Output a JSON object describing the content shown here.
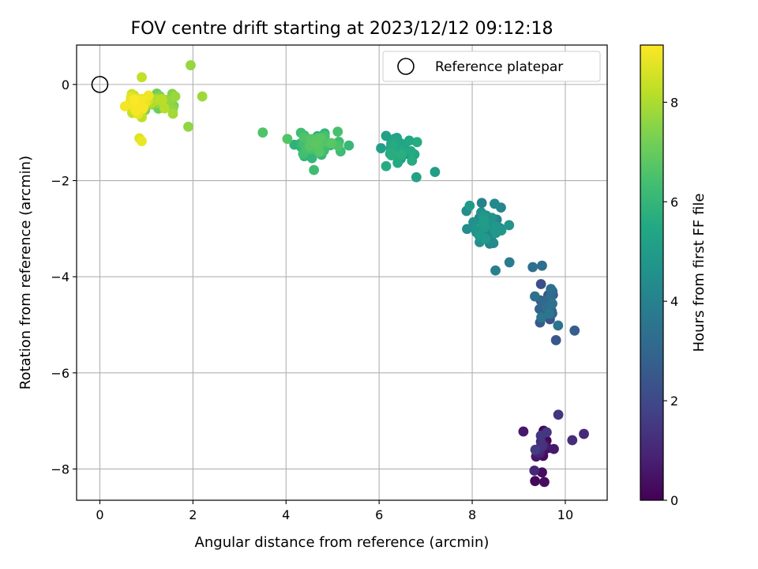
{
  "chart_data": {
    "type": "scatter",
    "title": "FOV centre drift starting at 2023/12/12 09:12:18",
    "xlabel": "Angular distance from reference (arcmin)",
    "ylabel": "Rotation from reference (arcmin)",
    "xlim": [
      -0.5,
      10.9
    ],
    "ylim": [
      -8.65,
      0.82
    ],
    "xticks": [
      0,
      2,
      4,
      6,
      8,
      10
    ],
    "yticks": [
      0,
      -2,
      -4,
      -6,
      -8
    ],
    "xtick_labels": [
      "0",
      "2",
      "4",
      "6",
      "8",
      "10"
    ],
    "ytick_labels": [
      "0",
      "−2",
      "−4",
      "−6",
      "−8"
    ],
    "grid": true,
    "legend": {
      "position": "top-right",
      "entries": [
        "Reference platepar"
      ]
    },
    "reference_point": {
      "x": 0,
      "y": 0
    },
    "colorbar": {
      "label": "Hours from first FF file",
      "range": [
        0,
        9.15
      ],
      "ticks": [
        0,
        2,
        4,
        6,
        8
      ],
      "tick_labels": [
        "0",
        "2",
        "4",
        "6",
        "8"
      ],
      "colormap": "viridis"
    },
    "clusters": [
      {
        "x": 9.5,
        "y": -7.6,
        "dx": 0.55,
        "dy": 0.7,
        "t": [
          0.1,
          1.6
        ],
        "n": 18
      },
      {
        "x": 9.6,
        "y": -4.6,
        "dx": 0.4,
        "dy": 0.6,
        "t": [
          2.2,
          3.6
        ],
        "n": 28
      },
      {
        "x": 8.3,
        "y": -2.9,
        "dx": 0.55,
        "dy": 0.6,
        "t": [
          4.0,
          5.0
        ],
        "n": 40
      },
      {
        "x": 6.4,
        "y": -1.35,
        "dx": 0.55,
        "dy": 0.35,
        "t": [
          5.0,
          5.7
        ],
        "n": 35
      },
      {
        "x": 4.6,
        "y": -1.2,
        "dx": 0.75,
        "dy": 0.35,
        "t": [
          5.8,
          6.8
        ],
        "n": 45
      },
      {
        "x": 1.3,
        "y": -0.35,
        "dx": 0.55,
        "dy": 0.3,
        "t": [
          7.0,
          8.2
        ],
        "n": 35
      },
      {
        "x": 0.8,
        "y": -0.4,
        "dx": 0.3,
        "dy": 0.35,
        "t": [
          8.2,
          9.1
        ],
        "n": 50
      }
    ],
    "outliers": [
      {
        "x": 0.9,
        "y": 0.15,
        "t": 8.3
      },
      {
        "x": 1.95,
        "y": 0.4,
        "t": 7.7
      },
      {
        "x": 2.2,
        "y": -0.25,
        "t": 7.8
      },
      {
        "x": 1.9,
        "y": -0.88,
        "t": 7.6
      },
      {
        "x": 0.85,
        "y": -1.12,
        "t": 8.7
      },
      {
        "x": 0.9,
        "y": -1.18,
        "t": 8.9
      },
      {
        "x": 3.5,
        "y": -1.0,
        "t": 6.6
      },
      {
        "x": 5.35,
        "y": -1.27,
        "t": 6.1
      },
      {
        "x": 4.6,
        "y": -1.78,
        "t": 6.3
      },
      {
        "x": 6.15,
        "y": -1.7,
        "t": 5.6
      },
      {
        "x": 6.8,
        "y": -1.93,
        "t": 5.2
      },
      {
        "x": 7.2,
        "y": -1.82,
        "t": 5.1
      },
      {
        "x": 8.5,
        "y": -3.87,
        "t": 3.9
      },
      {
        "x": 8.8,
        "y": -3.7,
        "t": 3.8
      },
      {
        "x": 9.3,
        "y": -3.8,
        "t": 3.4
      },
      {
        "x": 9.5,
        "y": -3.77,
        "t": 3.3
      },
      {
        "x": 10.2,
        "y": -5.12,
        "t": 2.7
      },
      {
        "x": 9.8,
        "y": -5.32,
        "t": 2.5
      },
      {
        "x": 10.4,
        "y": -7.27,
        "t": 1.1
      },
      {
        "x": 10.15,
        "y": -7.4,
        "t": 1.2
      },
      {
        "x": 9.85,
        "y": -6.87,
        "t": 1.4
      },
      {
        "x": 9.1,
        "y": -7.22,
        "t": 0.6
      },
      {
        "x": 9.35,
        "y": -8.25,
        "t": 0.2
      },
      {
        "x": 9.55,
        "y": -8.27,
        "t": 0.3
      },
      {
        "x": 9.5,
        "y": -8.07,
        "t": 0.3
      }
    ]
  }
}
